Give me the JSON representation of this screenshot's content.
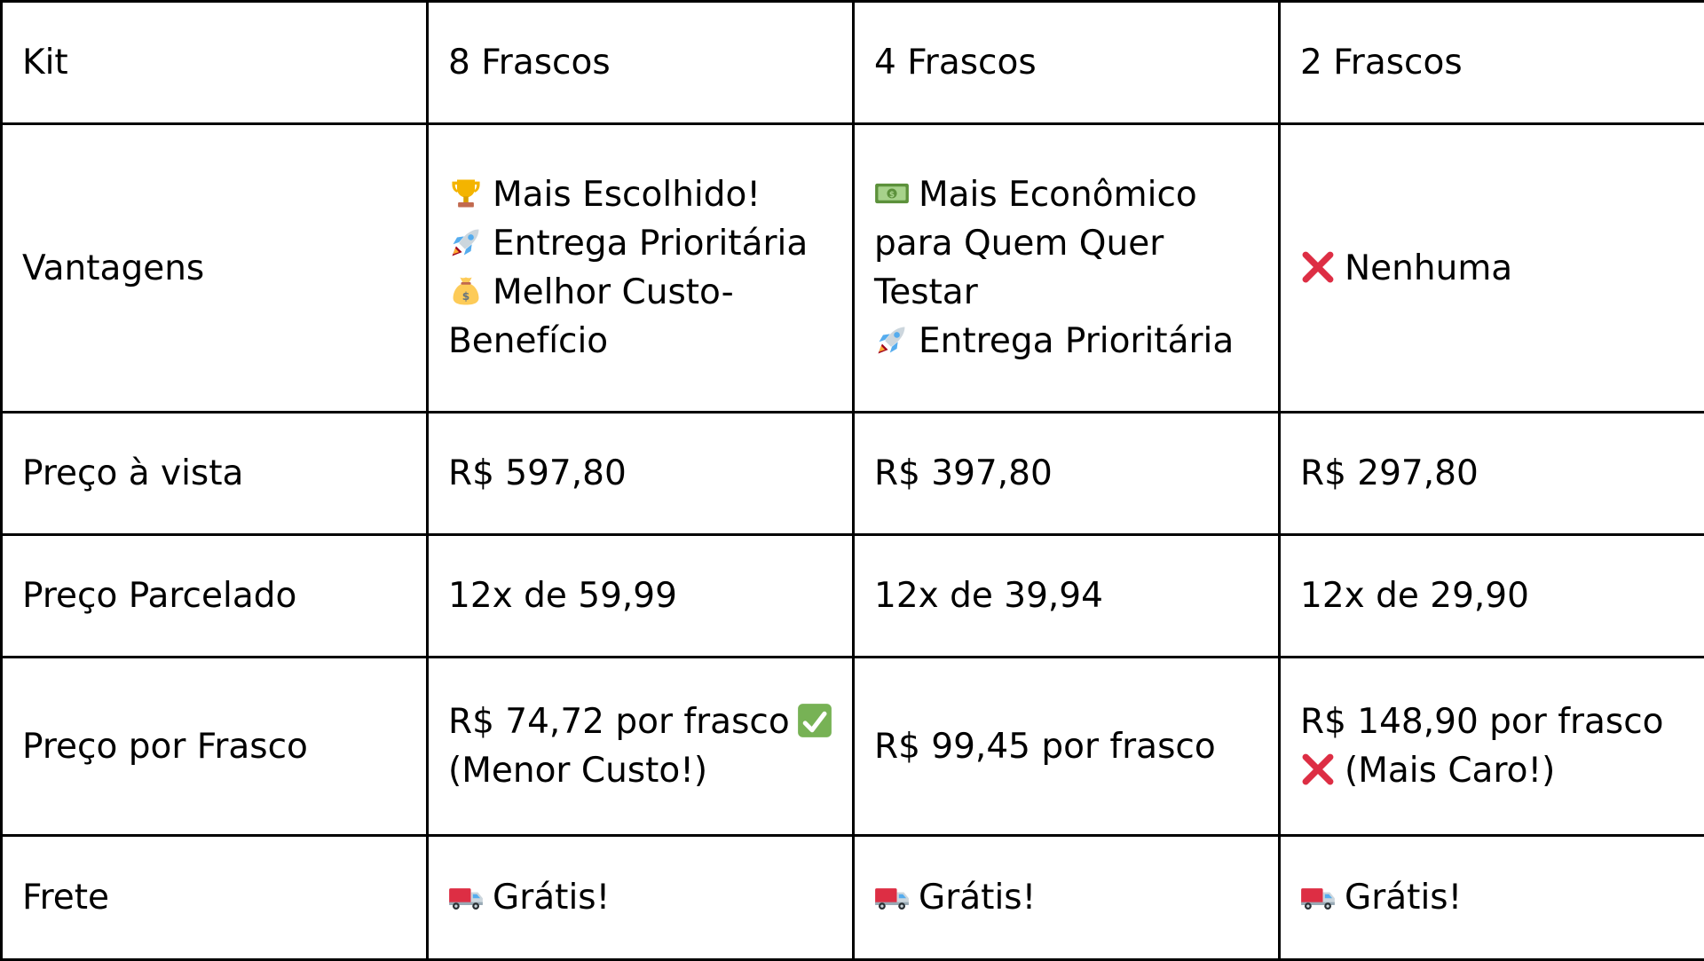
{
  "colors": {
    "border": "#000000",
    "check_green": "#77B255",
    "cross_red": "#DD2E44",
    "trophy_gold": "#F4B400",
    "money_green": "#5C913B",
    "bag_tan": "#FDCB58",
    "truck_red": "#DD2E44"
  },
  "table": {
    "header": {
      "label": "Kit",
      "kits": [
        "8 Frascos",
        "4 Frascos",
        "2 Frascos"
      ]
    },
    "vantagens": {
      "label": "Vantagens",
      "kit8": [
        {
          "icon": "trophy-icon",
          "text": "Mais Escolhido!"
        },
        {
          "icon": "rocket-icon",
          "text": "Entrega Prioritária"
        },
        {
          "icon": "money-bag-icon",
          "text": "Melhor Custo-"
        },
        {
          "icon": "",
          "text": "Benefício"
        }
      ],
      "kit4": [
        {
          "icon": "money-bill-icon",
          "text": "Mais Econômico"
        },
        {
          "icon": "",
          "text": "para Quem Quer"
        },
        {
          "icon": "",
          "text": "Testar"
        },
        {
          "icon": "rocket-icon",
          "text": "Entrega Prioritária"
        }
      ],
      "kit2": [
        {
          "icon": "cross-mark-icon",
          "text": "Nenhuma"
        }
      ]
    },
    "preco_vista": {
      "label": "Preço à vista",
      "values": [
        "R$ 597,80",
        "R$ 397,80",
        "R$ 297,80"
      ]
    },
    "preco_parcelado": {
      "label": "Preço Parcelado",
      "values": [
        "12x de 59,99",
        "12x de 39,94",
        "12x de 29,90"
      ]
    },
    "preco_frasco": {
      "label": "Preço por Frasco",
      "kit8": {
        "line1": "R$ 74,72 por frasco",
        "line1_icon": "check-mark-icon",
        "line2": "(Menor Custo!)"
      },
      "kit4": {
        "line1": "R$ 99,45 por frasco"
      },
      "kit2": {
        "line1": "R$ 148,90 por frasco",
        "line2_icon": "cross-mark-icon",
        "line2": "(Mais Caro!)"
      }
    },
    "frete": {
      "label": "Frete",
      "icon": "truck-icon",
      "values": [
        "Grátis!",
        "Grátis!",
        "Grátis!"
      ]
    }
  }
}
